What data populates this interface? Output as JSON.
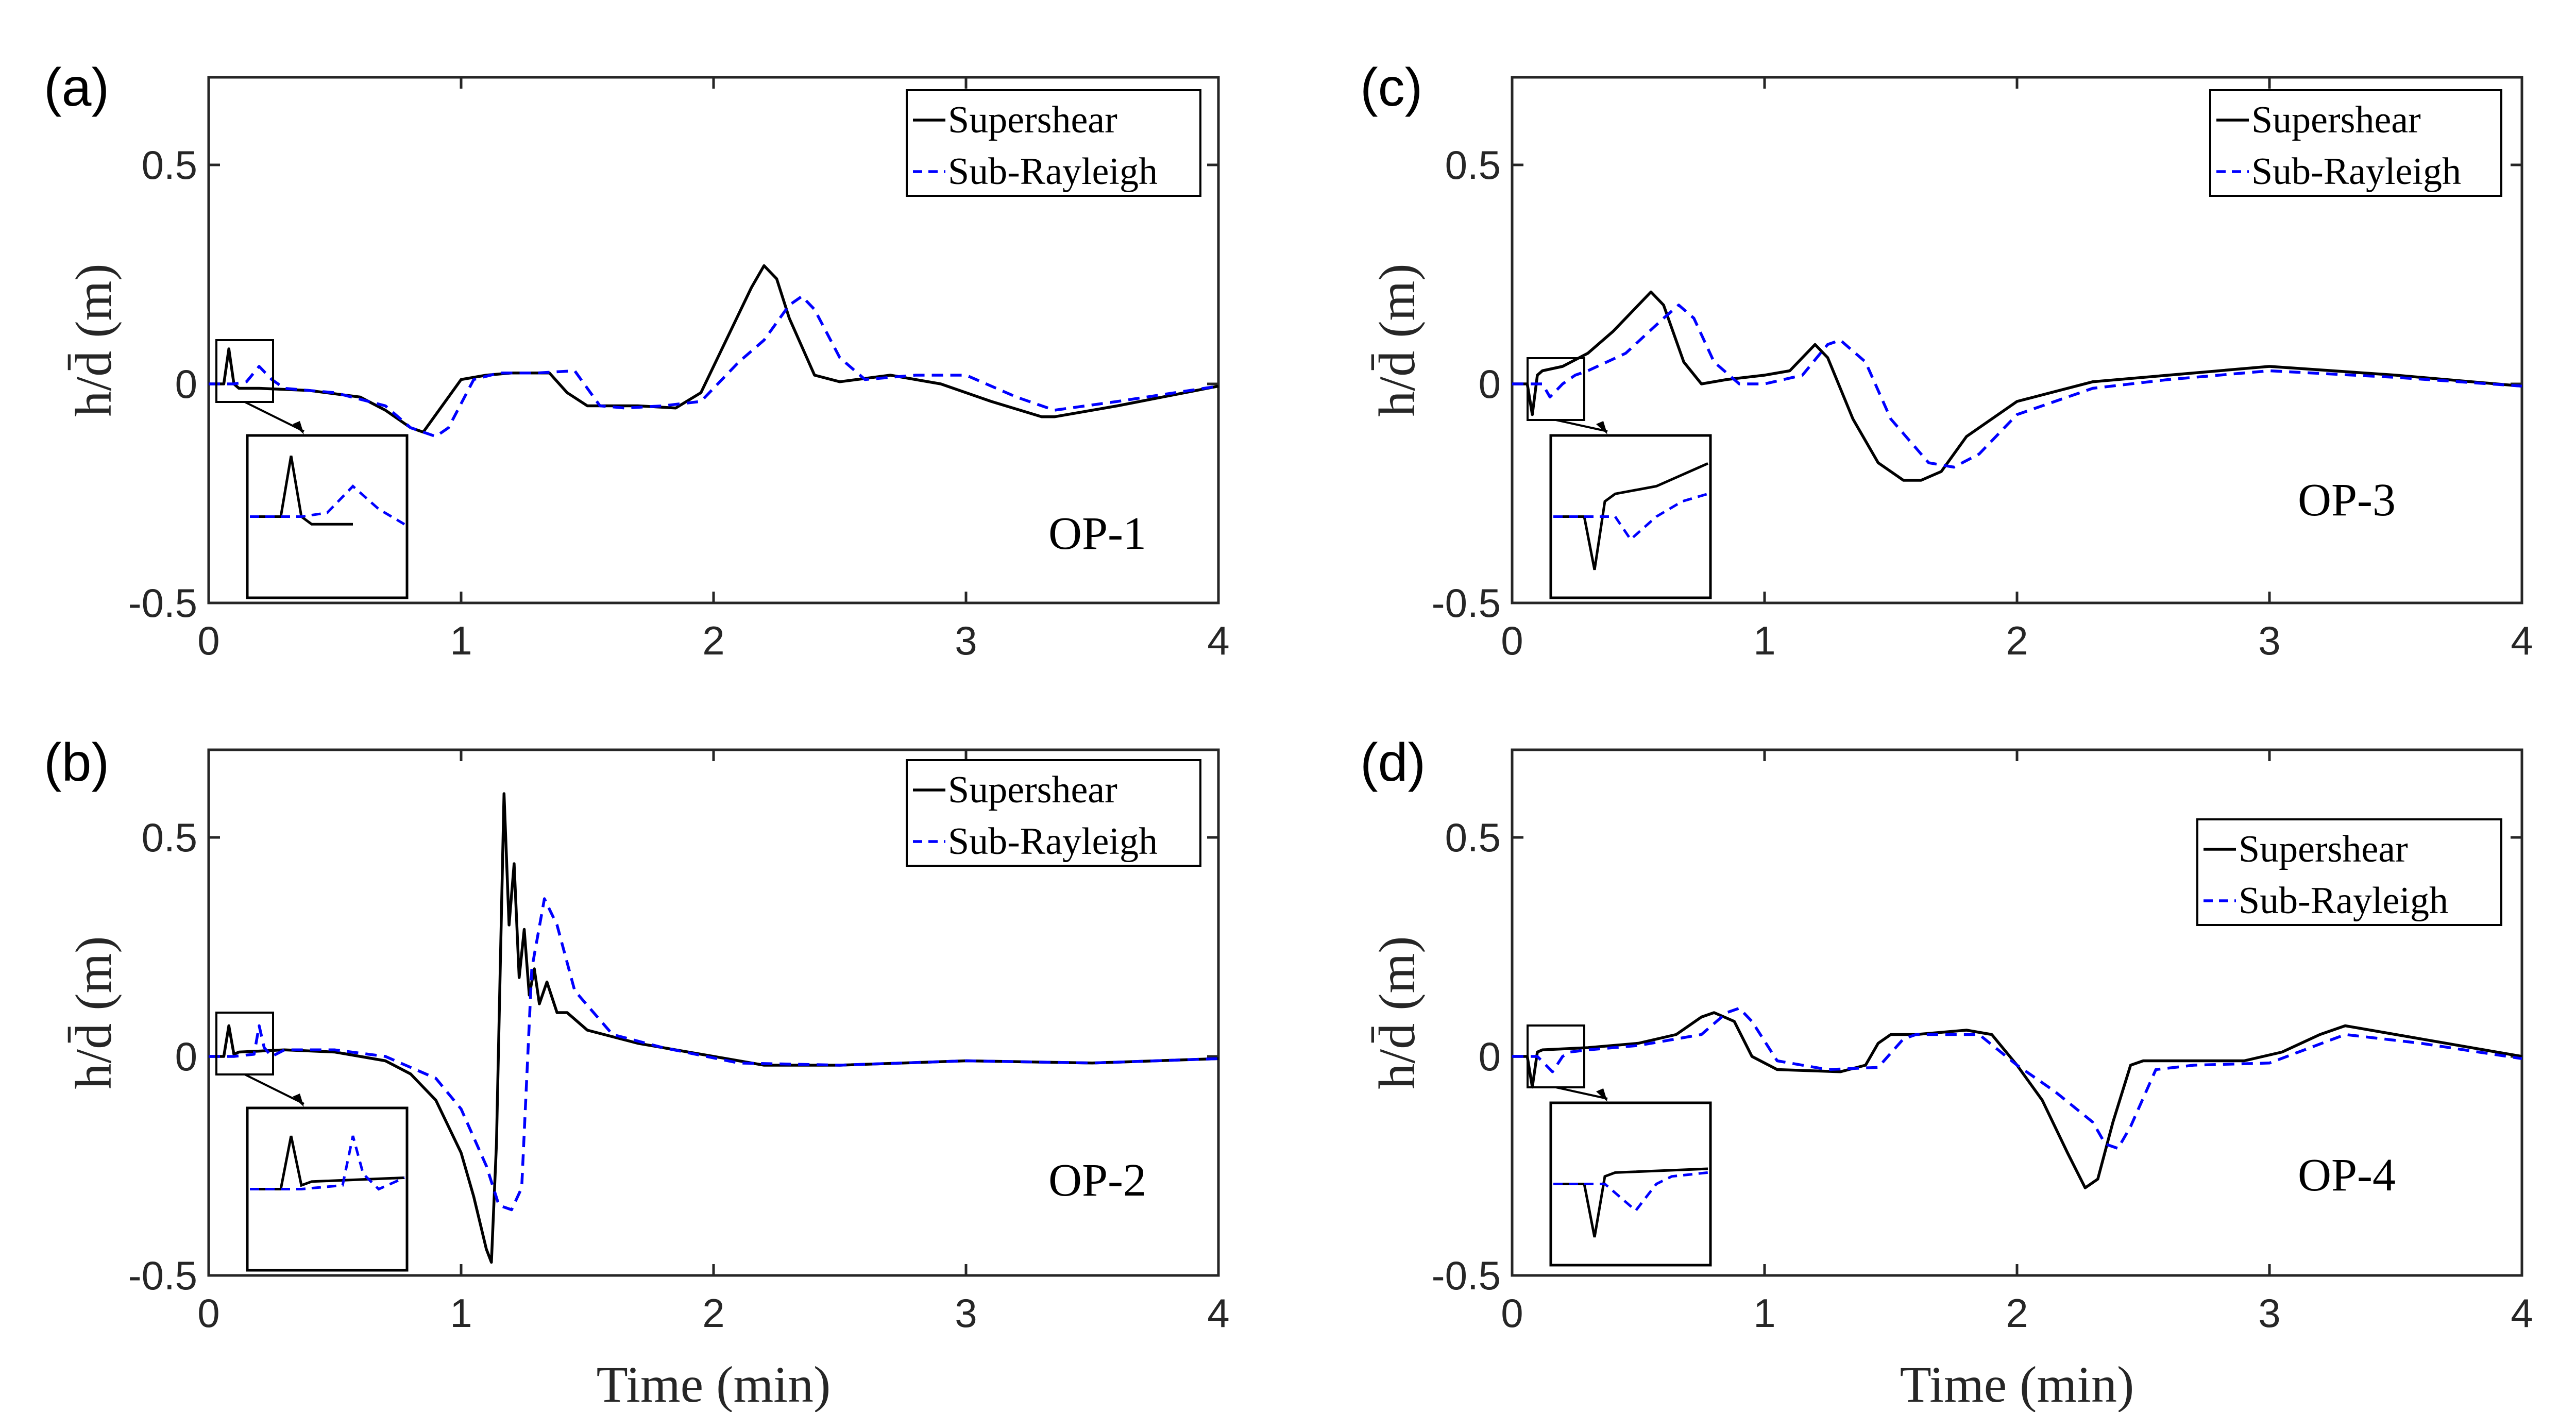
{
  "chart_data": [
    {
      "type": "line",
      "panel": "(a)",
      "annotation": "OP-1",
      "xlabel": "",
      "ylabel": "h/d̄ (m)",
      "xlim": [
        0,
        4
      ],
      "ylim": [
        -0.5,
        0.7
      ],
      "xticks": [
        "0",
        "1",
        "2",
        "3",
        "4"
      ],
      "yticks": [
        "-0.5",
        "0",
        "0.5"
      ],
      "legend_position": "top-right",
      "series": [
        {
          "name": "Supershear",
          "style": "solid",
          "color": "#000000",
          "x": [
            0,
            0.06,
            0.08,
            0.1,
            0.12,
            0.2,
            0.4,
            0.6,
            0.7,
            0.8,
            0.85,
            0.9,
            1.0,
            1.1,
            1.2,
            1.35,
            1.42,
            1.5,
            1.7,
            1.85,
            1.95,
            2.05,
            2.15,
            2.2,
            2.25,
            2.3,
            2.4,
            2.5,
            2.7,
            2.9,
            3.1,
            3.3,
            3.35,
            3.6,
            4.0
          ],
          "y": [
            0,
            0,
            0.08,
            0,
            -0.01,
            -0.01,
            -0.015,
            -0.03,
            -0.06,
            -0.1,
            -0.11,
            -0.07,
            0.01,
            0.02,
            0.025,
            0.025,
            -0.02,
            -0.05,
            -0.05,
            -0.055,
            -0.02,
            0.1,
            0.22,
            0.27,
            0.24,
            0.15,
            0.02,
            0.005,
            0.02,
            0.0,
            -0.04,
            -0.075,
            -0.075,
            -0.05,
            -0.005
          ]
        },
        {
          "name": "Sub-Rayleigh",
          "style": "dashed",
          "color": "#0000ff",
          "x": [
            0,
            0.1,
            0.15,
            0.2,
            0.25,
            0.3,
            0.5,
            0.7,
            0.8,
            0.9,
            0.95,
            1.05,
            1.15,
            1.3,
            1.45,
            1.55,
            1.65,
            1.8,
            1.95,
            2.1,
            2.2,
            2.3,
            2.35,
            2.4,
            2.5,
            2.6,
            2.8,
            3.0,
            3.2,
            3.35,
            3.6,
            4.0
          ],
          "y": [
            0,
            0,
            0.005,
            0.04,
            0.01,
            -0.01,
            -0.02,
            -0.05,
            -0.1,
            -0.12,
            -0.1,
            0.01,
            0.025,
            0.025,
            0.03,
            -0.05,
            -0.055,
            -0.05,
            -0.04,
            0.05,
            0.1,
            0.18,
            0.2,
            0.17,
            0.06,
            0.01,
            0.02,
            0.02,
            -0.03,
            -0.06,
            -0.04,
            -0.005
          ]
        }
      ]
    },
    {
      "type": "line",
      "panel": "(b)",
      "annotation": "OP-2",
      "xlabel": "Time (min)",
      "ylabel": "h/d̄ (m)",
      "xlim": [
        0,
        4
      ],
      "ylim": [
        -0.5,
        0.7
      ],
      "xticks": [
        "0",
        "1",
        "2",
        "3",
        "4"
      ],
      "yticks": [
        "-0.5",
        "0",
        "0.5"
      ],
      "legend_position": "top-right",
      "series": [
        {
          "name": "Supershear",
          "style": "solid",
          "color": "#000000",
          "x": [
            0,
            0.06,
            0.08,
            0.1,
            0.12,
            0.3,
            0.5,
            0.7,
            0.8,
            0.9,
            1.0,
            1.05,
            1.1,
            1.12,
            1.14,
            1.17,
            1.19,
            1.21,
            1.23,
            1.25,
            1.27,
            1.29,
            1.31,
            1.34,
            1.38,
            1.42,
            1.5,
            1.7,
            2.0,
            2.2,
            2.5,
            3.0,
            3.5,
            4.0
          ],
          "y": [
            0,
            0,
            0.07,
            0.005,
            0.01,
            0.015,
            0.01,
            -0.01,
            -0.04,
            -0.1,
            -0.22,
            -0.32,
            -0.44,
            -0.47,
            -0.2,
            0.6,
            0.3,
            0.44,
            0.18,
            0.29,
            0.14,
            0.2,
            0.12,
            0.17,
            0.1,
            0.1,
            0.06,
            0.03,
            0.0,
            -0.02,
            -0.02,
            -0.01,
            -0.015,
            -0.005
          ]
        },
        {
          "name": "Sub-Rayleigh",
          "style": "dashed",
          "color": "#0000ff",
          "x": [
            0,
            0.1,
            0.18,
            0.2,
            0.22,
            0.25,
            0.3,
            0.5,
            0.7,
            0.9,
            1.0,
            1.1,
            1.15,
            1.2,
            1.24,
            1.28,
            1.33,
            1.38,
            1.45,
            1.6,
            1.8,
            2.1,
            2.5,
            3.0,
            3.5,
            4.0
          ],
          "y": [
            0,
            0,
            0.005,
            0.07,
            0.02,
            0.0,
            0.015,
            0.015,
            0.0,
            -0.05,
            -0.12,
            -0.25,
            -0.34,
            -0.35,
            -0.3,
            0.2,
            0.36,
            0.3,
            0.15,
            0.05,
            0.02,
            -0.015,
            -0.02,
            -0.01,
            -0.015,
            -0.005
          ]
        }
      ]
    },
    {
      "type": "line",
      "panel": "(c)",
      "annotation": "OP-3",
      "xlabel": "",
      "ylabel": "h/d̄ (m)",
      "xlim": [
        0,
        4
      ],
      "ylim": [
        -0.5,
        0.7
      ],
      "xticks": [
        "0",
        "1",
        "2",
        "3",
        "4"
      ],
      "yticks": [
        "-0.5",
        "0",
        "0.5"
      ],
      "legend_position": "top-right",
      "series": [
        {
          "name": "Supershear",
          "style": "solid",
          "color": "#000000",
          "x": [
            0,
            0.06,
            0.08,
            0.1,
            0.12,
            0.2,
            0.3,
            0.4,
            0.5,
            0.55,
            0.6,
            0.68,
            0.75,
            0.85,
            1.0,
            1.1,
            1.2,
            1.25,
            1.35,
            1.45,
            1.55,
            1.62,
            1.7,
            1.8,
            2.0,
            2.3,
            2.6,
            3.0,
            3.5,
            4.0
          ],
          "y": [
            0,
            0,
            -0.07,
            0.02,
            0.03,
            0.04,
            0.07,
            0.12,
            0.18,
            0.21,
            0.18,
            0.05,
            0.0,
            0.01,
            0.02,
            0.03,
            0.09,
            0.06,
            -0.08,
            -0.18,
            -0.22,
            -0.22,
            -0.2,
            -0.12,
            -0.04,
            0.005,
            0.02,
            0.04,
            0.02,
            -0.005
          ]
        },
        {
          "name": "Sub-Rayleigh",
          "style": "dashed",
          "color": "#0000ff",
          "x": [
            0,
            0.12,
            0.15,
            0.2,
            0.25,
            0.3,
            0.45,
            0.6,
            0.66,
            0.72,
            0.8,
            0.9,
            1.0,
            1.15,
            1.25,
            1.3,
            1.4,
            1.5,
            1.65,
            1.75,
            1.85,
            2.0,
            2.3,
            2.6,
            3.0,
            3.5,
            4.0
          ],
          "y": [
            0,
            0,
            -0.03,
            0.0,
            0.02,
            0.03,
            0.07,
            0.15,
            0.18,
            0.15,
            0.05,
            0.0,
            0.0,
            0.02,
            0.09,
            0.1,
            0.05,
            -0.08,
            -0.18,
            -0.19,
            -0.16,
            -0.07,
            -0.01,
            0.01,
            0.03,
            0.015,
            -0.005
          ]
        }
      ]
    },
    {
      "type": "line",
      "panel": "(d)",
      "annotation": "OP-4",
      "xlabel": "Time (min)",
      "ylabel": "h/d̄ (m)",
      "xlim": [
        0,
        4
      ],
      "ylim": [
        -0.5,
        0.7
      ],
      "xticks": [
        "0",
        "1",
        "2",
        "3",
        "4"
      ],
      "yticks": [
        "-0.5",
        "0",
        "0.5"
      ],
      "legend_position": "top-right",
      "series": [
        {
          "name": "Supershear",
          "style": "solid",
          "color": "#000000",
          "x": [
            0,
            0.06,
            0.08,
            0.1,
            0.12,
            0.3,
            0.5,
            0.65,
            0.75,
            0.8,
            0.88,
            0.95,
            1.05,
            1.3,
            1.4,
            1.45,
            1.5,
            1.6,
            1.8,
            1.9,
            2.0,
            2.1,
            2.2,
            2.27,
            2.32,
            2.38,
            2.45,
            2.5,
            2.7,
            2.9,
            3.05,
            3.2,
            3.3,
            3.5,
            4.0
          ],
          "y": [
            0,
            0,
            -0.07,
            0.01,
            0.015,
            0.02,
            0.03,
            0.05,
            0.09,
            0.1,
            0.08,
            0.0,
            -0.03,
            -0.035,
            -0.02,
            0.03,
            0.05,
            0.05,
            0.06,
            0.05,
            -0.02,
            -0.1,
            -0.22,
            -0.3,
            -0.28,
            -0.15,
            -0.02,
            -0.01,
            -0.01,
            -0.01,
            0.01,
            0.05,
            0.07,
            0.05,
            0.0
          ]
        },
        {
          "name": "Sub-Rayleigh",
          "style": "dashed",
          "color": "#0000ff",
          "x": [
            0,
            0.1,
            0.16,
            0.2,
            0.23,
            0.3,
            0.5,
            0.75,
            0.85,
            0.9,
            0.95,
            1.05,
            1.25,
            1.45,
            1.55,
            1.6,
            1.85,
            2.0,
            2.15,
            2.3,
            2.35,
            2.4,
            2.45,
            2.55,
            2.7,
            3.0,
            3.3,
            3.6,
            4.0
          ],
          "y": [
            0,
            0,
            -0.035,
            0.0,
            0.01,
            0.015,
            0.025,
            0.05,
            0.1,
            0.11,
            0.08,
            -0.01,
            -0.03,
            -0.025,
            0.04,
            0.05,
            0.05,
            -0.02,
            -0.08,
            -0.15,
            -0.2,
            -0.21,
            -0.16,
            -0.03,
            -0.02,
            -0.015,
            0.05,
            0.03,
            -0.005
          ]
        }
      ]
    }
  ]
}
